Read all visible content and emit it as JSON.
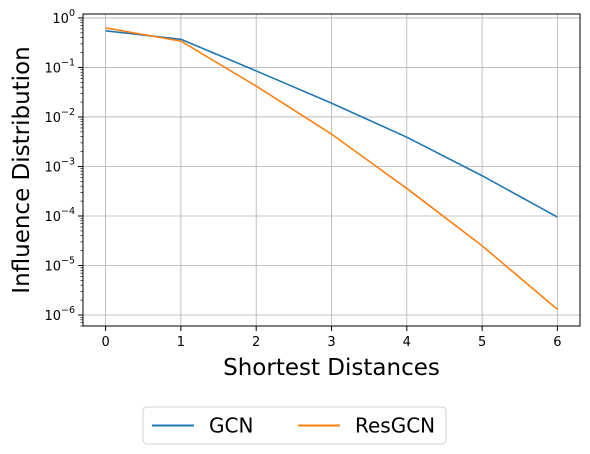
{
  "chart_data": {
    "type": "line",
    "xlabel": "Shortest Distances",
    "ylabel": "Influence Distribution",
    "y_scale": "log",
    "xlim": [
      -0.3,
      6.3
    ],
    "ylim": [
      6e-07,
      1.2
    ],
    "grid": true,
    "legend_placement": "bottom-center",
    "x_ticks": [
      0,
      1,
      2,
      3,
      4,
      5,
      6
    ],
    "y_ticks": [
      {
        "value": 1e-06,
        "mantissa": "10",
        "exp": "−6"
      },
      {
        "value": 1e-05,
        "mantissa": "10",
        "exp": "−5"
      },
      {
        "value": 0.0001,
        "mantissa": "10",
        "exp": "−4"
      },
      {
        "value": 0.001,
        "mantissa": "10",
        "exp": "−3"
      },
      {
        "value": 0.01,
        "mantissa": "10",
        "exp": "−2"
      },
      {
        "value": 0.1,
        "mantissa": "10",
        "exp": "−1"
      },
      {
        "value": 1,
        "mantissa": "10",
        "exp": "0"
      }
    ],
    "series": [
      {
        "name": "GCN",
        "color": "#1f77b4",
        "x": [
          0,
          1,
          2,
          3,
          4,
          5,
          6
        ],
        "y": [
          0.55,
          0.37,
          0.085,
          0.019,
          0.0039,
          0.00065,
          9.5e-05
        ]
      },
      {
        "name": "ResGCN",
        "color": "#ff7f0e",
        "x": [
          0,
          1,
          2,
          3,
          4,
          5,
          6
        ],
        "y": [
          0.63,
          0.34,
          0.042,
          0.0045,
          0.00036,
          2.5e-05,
          1.3e-06
        ]
      }
    ]
  }
}
